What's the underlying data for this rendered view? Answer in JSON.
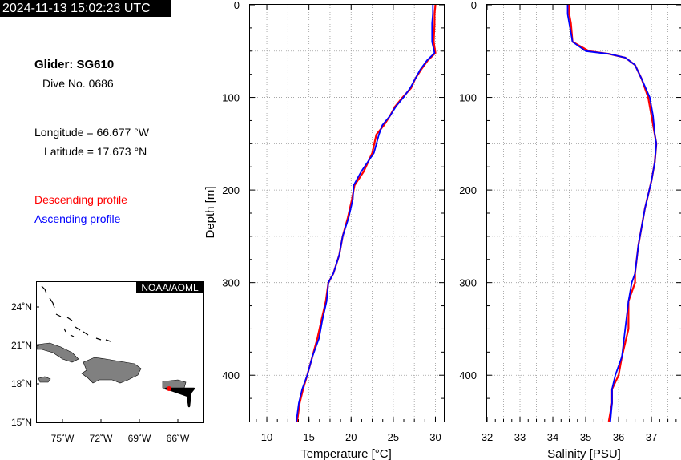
{
  "header": {
    "timestamp": "2024-11-13 15:02:23 UTC"
  },
  "info": {
    "glider": "Glider: SG610",
    "dive": "Dive No. 0686",
    "longitude": "Longitude = 66.677 °W",
    "latitude": "Latitude = 17.673 °N",
    "descending_label": "Descending profile",
    "ascending_label": "Ascending profile"
  },
  "colors": {
    "descending": "#ff0000",
    "ascending": "#0000ff",
    "land": "#808080"
  },
  "map": {
    "credit": "NOAA/AOML",
    "lat_ticks": [
      "24˚N",
      "21˚N",
      "18˚N",
      "15˚N"
    ],
    "lon_ticks": [
      "75˚W",
      "72˚W",
      "69˚W",
      "66˚W"
    ]
  },
  "chart_data": [
    {
      "type": "line",
      "xlabel": "Temperature [°C]",
      "ylabel": "Depth [m]",
      "xlim": [
        8,
        31
      ],
      "ylim": [
        450,
        0
      ],
      "xticks": [
        10,
        15,
        20,
        25,
        30
      ],
      "yticks": [
        0,
        100,
        200,
        300,
        400
      ],
      "grid": true,
      "series": [
        {
          "name": "Descending profile",
          "color": "#ff0000",
          "x": [
            30.0,
            29.9,
            29.9,
            29.8,
            30.0,
            29.1,
            28.3,
            27.6,
            27.1,
            26.1,
            25.2,
            24.6,
            23.9,
            23.0,
            22.5,
            21.5,
            20.4,
            20.1,
            19.6,
            19.0,
            18.6,
            17.9,
            17.3,
            17.0,
            16.5,
            16.0,
            15.4,
            14.8,
            14.3,
            13.9,
            13.6
          ],
          "y": [
            0,
            10,
            20,
            40,
            52,
            60,
            70,
            80,
            90,
            100,
            110,
            120,
            130,
            140,
            160,
            180,
            195,
            210,
            230,
            250,
            270,
            290,
            300,
            320,
            340,
            360,
            380,
            400,
            415,
            430,
            450
          ]
        },
        {
          "name": "Ascending profile",
          "color": "#0000ff",
          "x": [
            29.7,
            29.7,
            29.6,
            29.6,
            29.9,
            29.0,
            28.2,
            27.6,
            27.0,
            26.2,
            25.3,
            24.6,
            23.7,
            23.3,
            22.7,
            21.2,
            20.3,
            20.2,
            19.7,
            19.0,
            18.6,
            17.9,
            17.3,
            17.1,
            16.6,
            16.2,
            15.4,
            14.8,
            14.2,
            13.8,
            13.5
          ],
          "y": [
            0,
            10,
            20,
            40,
            52,
            60,
            70,
            80,
            90,
            100,
            110,
            120,
            130,
            140,
            160,
            180,
            195,
            210,
            230,
            250,
            270,
            290,
            300,
            320,
            340,
            360,
            380,
            400,
            415,
            430,
            450
          ]
        }
      ]
    },
    {
      "type": "line",
      "xlabel": "Salinity [PSU]",
      "ylabel": "",
      "xlim": [
        32,
        37.9
      ],
      "ylim": [
        450,
        0
      ],
      "xticks": [
        32,
        33,
        34,
        35,
        36,
        37
      ],
      "yticks": [
        0,
        100,
        200,
        300,
        400
      ],
      "grid": true,
      "series": [
        {
          "name": "Descending profile",
          "color": "#ff0000",
          "x": [
            34.5,
            34.5,
            34.55,
            34.6,
            35.1,
            35.7,
            36.2,
            36.5,
            36.7,
            36.9,
            37.0,
            37.1,
            37.15,
            37.1,
            37.0,
            36.8,
            36.6,
            36.5,
            36.5,
            36.3,
            36.3,
            36.1,
            36.0,
            35.8,
            35.8,
            35.7
          ],
          "y": [
            0,
            10,
            20,
            40,
            50,
            53,
            57,
            65,
            80,
            100,
            120,
            140,
            150,
            170,
            190,
            220,
            260,
            290,
            300,
            320,
            350,
            380,
            400,
            415,
            430,
            450
          ]
        },
        {
          "name": "Ascending profile",
          "color": "#0000ff",
          "x": [
            34.45,
            34.45,
            34.5,
            34.6,
            35.0,
            35.7,
            36.2,
            36.5,
            36.7,
            36.95,
            37.05,
            37.1,
            37.15,
            37.1,
            37.0,
            36.8,
            36.6,
            36.5,
            36.4,
            36.3,
            36.2,
            36.1,
            35.9,
            35.8,
            35.8,
            35.75
          ],
          "y": [
            0,
            10,
            20,
            40,
            50,
            53,
            57,
            65,
            80,
            100,
            120,
            140,
            150,
            170,
            190,
            220,
            260,
            290,
            300,
            320,
            350,
            380,
            400,
            415,
            430,
            450
          ]
        }
      ]
    }
  ]
}
